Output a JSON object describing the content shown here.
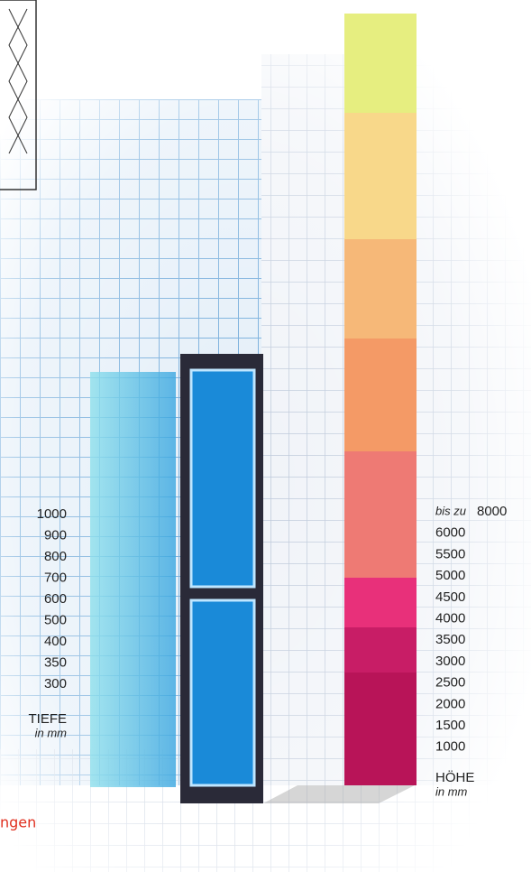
{
  "depth": {
    "values": [
      1000,
      900,
      800,
      700,
      600,
      500,
      400,
      350,
      300
    ],
    "title": "TIEFE",
    "unit": "in mm"
  },
  "height": {
    "prefix": "bis zu",
    "values": [
      8000,
      6000,
      5500,
      5000,
      4500,
      4000,
      3500,
      3000,
      2500,
      2000,
      1500,
      1000
    ],
    "title": "HÖHE",
    "unit": "in mm"
  },
  "footer": "ngen"
}
